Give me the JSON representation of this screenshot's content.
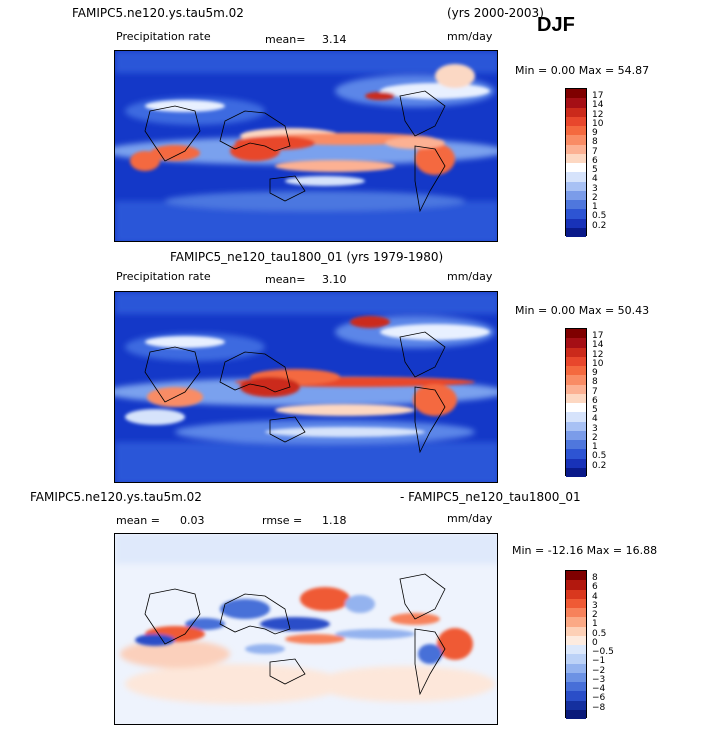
{
  "season": "DJF",
  "panels": [
    {
      "title_left": "FAMIPC5.ne120.ys.tau5m.02",
      "title_right": "(yrs 2000-2003)",
      "variable": "Precipitation rate",
      "mean_label": "mean=",
      "mean_value": "3.14",
      "units": "mm/day",
      "minmax_text": "Min =   0.00 Max =  54.87",
      "colorbar": {
        "levels": [
          "17",
          "14",
          "12",
          "10",
          "9",
          "8",
          "7",
          "6",
          "5",
          "4",
          "3",
          "2",
          "1",
          "0.5",
          "0.2"
        ],
        "colors": [
          "#7f0000",
          "#a50f15",
          "#cb2a1b",
          "#e8472c",
          "#f4693f",
          "#f98c65",
          "#fcb193",
          "#fdd8c2",
          "#ffffff",
          "#d6e3fb",
          "#a8c1f4",
          "#7b9ce9",
          "#4f77dd",
          "#2d54d3",
          "#1832b8",
          "#0a1a8a"
        ]
      },
      "chart_data": {
        "type": "heatmap",
        "title": "FAMIPC5.ne120.ys.tau5m.02 (yrs 2000-2003)",
        "variable": "Precipitation rate",
        "units": "mm/day",
        "mean": 3.14,
        "min": 0.0,
        "max": 54.87,
        "levels": [
          0.2,
          0.5,
          1,
          2,
          3,
          4,
          5,
          6,
          7,
          8,
          9,
          10,
          12,
          14,
          17
        ]
      }
    },
    {
      "title_center": "FAMIPC5_ne120_tau1800_01 (yrs 1979-1980)",
      "variable": "Precipitation rate",
      "mean_label": "mean=",
      "mean_value": "3.10",
      "units": "mm/day",
      "minmax_text": "Min =   0.00 Max =  50.43",
      "colorbar": {
        "levels": [
          "17",
          "14",
          "12",
          "10",
          "9",
          "8",
          "7",
          "6",
          "5",
          "4",
          "3",
          "2",
          "1",
          "0.5",
          "0.2"
        ],
        "colors": [
          "#7f0000",
          "#a50f15",
          "#cb2a1b",
          "#e8472c",
          "#f4693f",
          "#f98c65",
          "#fcb193",
          "#fdd8c2",
          "#ffffff",
          "#d6e3fb",
          "#a8c1f4",
          "#7b9ce9",
          "#4f77dd",
          "#2d54d3",
          "#1832b8",
          "#0a1a8a"
        ]
      },
      "chart_data": {
        "type": "heatmap",
        "title": "FAMIPC5_ne120_tau1800_01 (yrs 1979-1980)",
        "variable": "Precipitation rate",
        "units": "mm/day",
        "mean": 3.1,
        "min": 0.0,
        "max": 50.43,
        "levels": [
          0.2,
          0.5,
          1,
          2,
          3,
          4,
          5,
          6,
          7,
          8,
          9,
          10,
          12,
          14,
          17
        ]
      }
    },
    {
      "title_left": "FAMIPC5.ne120.ys.tau5m.02",
      "title_right": "- FAMIPC5_ne120_tau1800_01",
      "mean_label": "mean =",
      "mean_value": "0.03",
      "rmse_label": "rmse =",
      "rmse_value": "1.18",
      "units": "mm/day",
      "minmax_text": "Min = -12.16 Max =  16.88",
      "colorbar": {
        "levels": [
          "8",
          "6",
          "4",
          "3",
          "2",
          "1",
          "0.5",
          "0",
          "−0.5",
          "−1",
          "−2",
          "−3",
          "−4",
          "−6",
          "−8"
        ],
        "colors": [
          "#7f0000",
          "#b2180e",
          "#d9381e",
          "#ef5a35",
          "#f7825b",
          "#fba985",
          "#fdd0b6",
          "#fdebdf",
          "#dce8fb",
          "#bcd2f7",
          "#94b3ef",
          "#6c92e4",
          "#476fd8",
          "#2a4ec8",
          "#15309f",
          "#0a1a7a"
        ]
      },
      "chart_data": {
        "type": "heatmap",
        "title": "FAMIPC5.ne120.ys.tau5m.02 - FAMIPC5_ne120_tau1800_01",
        "units": "mm/day",
        "mean": 0.03,
        "rmse": 1.18,
        "min": -12.16,
        "max": 16.88,
        "levels": [
          -8,
          -6,
          -4,
          -3,
          -2,
          -1,
          -0.5,
          0,
          0.5,
          1,
          2,
          3,
          4,
          6,
          8
        ]
      }
    }
  ]
}
